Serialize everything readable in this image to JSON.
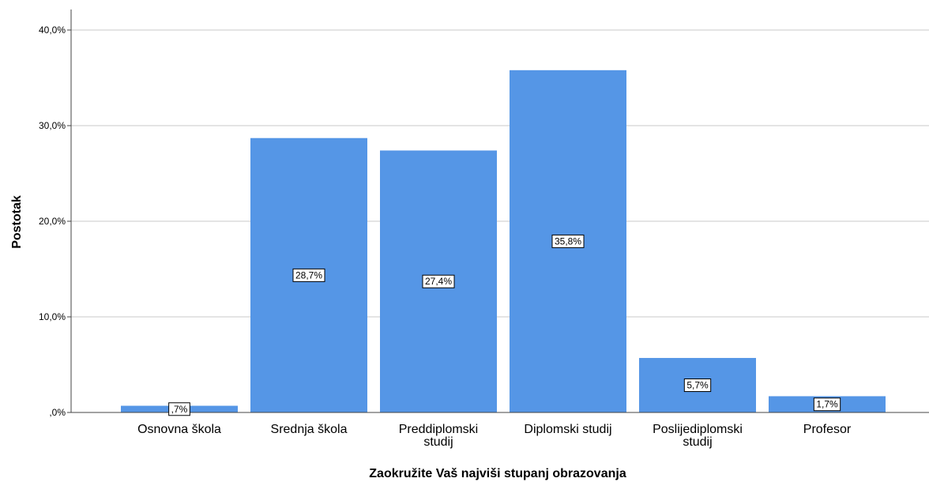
{
  "chart_data": {
    "type": "bar",
    "title": "",
    "xlabel": "Zaokružite Vaš najviši stupanj obrazovanja",
    "ylabel": "Postotak",
    "categories": [
      [
        "Osnovna škola"
      ],
      [
        "Srednja škola"
      ],
      [
        "Preddiplomski",
        "studij"
      ],
      [
        "Diplomski studij"
      ],
      [
        "Poslijediplomski",
        "studij"
      ],
      [
        "Profesor"
      ]
    ],
    "values": [
      0.7,
      28.7,
      27.4,
      35.8,
      5.7,
      1.7
    ],
    "data_labels": [
      ",7%",
      "28,7%",
      "27,4%",
      "35,8%",
      "5,7%",
      "1,7%"
    ],
    "ylim": [
      0,
      40
    ],
    "yticks": [
      0,
      10,
      20,
      30,
      40
    ],
    "ytick_labels": [
      ",0%",
      "10,0%",
      "20,0%",
      "30,0%",
      "40,0%"
    ],
    "grid": true,
    "legend": "none",
    "colors": {
      "bar": "#5596E6",
      "grid": "#c8c8c8",
      "axis": "#444444"
    }
  }
}
